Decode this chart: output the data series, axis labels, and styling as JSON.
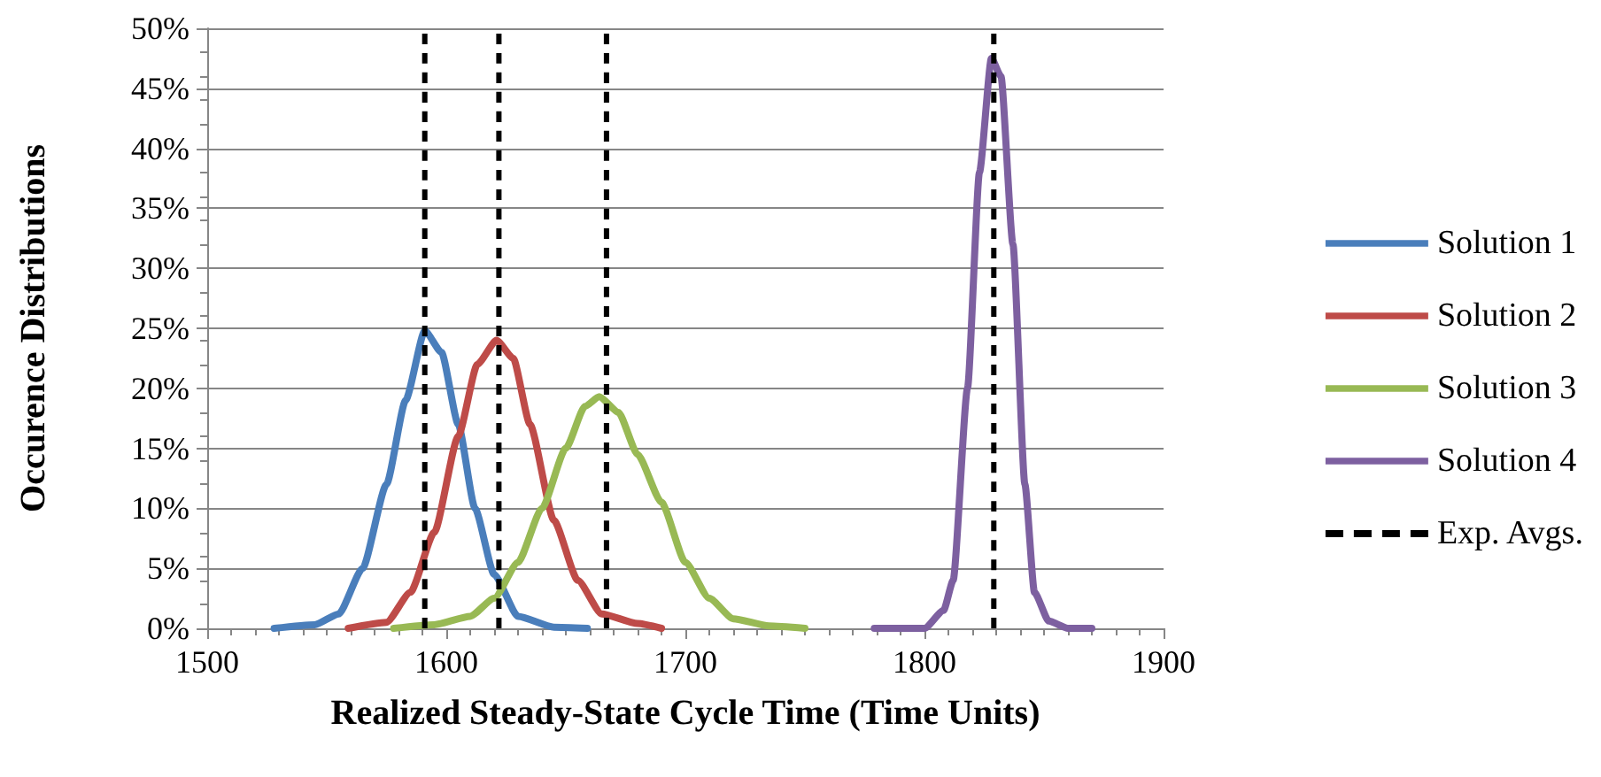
{
  "chart_data": {
    "type": "line",
    "xlabel": "Realized Steady-State Cycle Time (Time Units)",
    "ylabel": "Occurence Distributions",
    "series": [
      {
        "name": "Solution 1",
        "color": "#4a7ebb",
        "x": [
          1528,
          1545,
          1555,
          1565,
          1575,
          1583,
          1591,
          1598,
          1605,
          1612,
          1620,
          1630,
          1645,
          1659
        ],
        "values": [
          0,
          0.3,
          1.2,
          5,
          12,
          19,
          24.8,
          23,
          17,
          10,
          4.5,
          1,
          0.1,
          0
        ]
      },
      {
        "name": "Solution 2",
        "color": "#be4b48",
        "x": [
          1559,
          1575,
          1585,
          1595,
          1605,
          1613,
          1621,
          1628,
          1635,
          1645,
          1655,
          1665,
          1680,
          1690
        ],
        "values": [
          0,
          0.5,
          3,
          8,
          16,
          22,
          24,
          22.5,
          17,
          9,
          4,
          1.2,
          0.4,
          0
        ]
      },
      {
        "name": "Solution 3",
        "color": "#98b954",
        "x": [
          1578,
          1595,
          1610,
          1620,
          1630,
          1640,
          1650,
          1658,
          1664,
          1672,
          1680,
          1690,
          1700,
          1710,
          1720,
          1735,
          1750
        ],
        "values": [
          0,
          0.3,
          1,
          2.5,
          5.5,
          10,
          15,
          18.5,
          19.3,
          18,
          14.5,
          10.5,
          5.5,
          2.5,
          0.8,
          0.2,
          0
        ]
      },
      {
        "name": "Solution 4",
        "color": "#7d60a0",
        "x": [
          1779,
          1800,
          1808,
          1812,
          1818,
          1823,
          1828,
          1832,
          1837,
          1842,
          1846,
          1852,
          1860,
          1870
        ],
        "values": [
          0,
          0,
          1.5,
          4,
          20,
          38,
          47.5,
          46,
          32,
          12,
          3,
          0.6,
          0,
          0
        ]
      },
      {
        "name": "Exp. Avgs.",
        "color": "#000000",
        "line_style": "dashed",
        "x": [
          1591,
          1591,
          null,
          1622,
          1622,
          null,
          1667,
          1667,
          null,
          1829,
          1829
        ],
        "values": [
          0,
          50,
          null,
          0,
          50,
          null,
          0,
          50,
          null,
          0,
          50
        ]
      }
    ],
    "xlim": [
      1500,
      1900
    ],
    "xticks": [
      1500,
      1600,
      1700,
      1800,
      1900
    ],
    "ylim": [
      0,
      50
    ],
    "yticks": [
      {
        "value": 0,
        "label": "0%"
      },
      {
        "value": 5,
        "label": "5%"
      },
      {
        "value": 10,
        "label": "10%"
      },
      {
        "value": 15,
        "label": "15%"
      },
      {
        "value": 20,
        "label": "20%"
      },
      {
        "value": 25,
        "label": "25%"
      },
      {
        "value": 30,
        "label": "30%"
      },
      {
        "value": 35,
        "label": "35%"
      },
      {
        "value": 40,
        "label": "40%"
      },
      {
        "value": 45,
        "label": "45%"
      },
      {
        "value": 50,
        "label": "50%"
      }
    ],
    "grid": "y",
    "legend": "right",
    "marker": "none",
    "line_style": "solid"
  }
}
